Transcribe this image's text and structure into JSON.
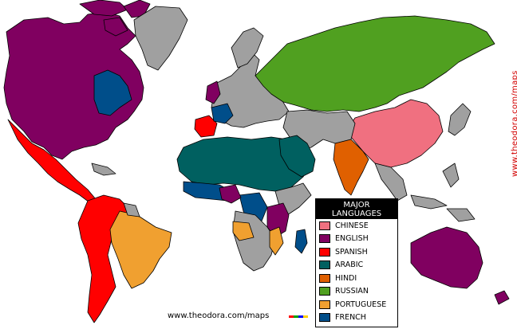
{
  "legend": {
    "title_line1": "MAJOR",
    "title_line2": "LANGUAGES",
    "items": [
      {
        "label": "CHINESE",
        "color": "#f07080"
      },
      {
        "label": "ENGLISH",
        "color": "#800060"
      },
      {
        "label": "SPANISH",
        "color": "#ff0000"
      },
      {
        "label": "ARABIC",
        "color": "#006060"
      },
      {
        "label": "HINDI",
        "color": "#e06000"
      },
      {
        "label": "RUSSIAN",
        "color": "#50a020"
      },
      {
        "label": "PORTUGUESE",
        "color": "#f0a030"
      },
      {
        "label": "FRENCH",
        "color": "#004e8a"
      }
    ]
  },
  "other_color": "#a0a0a0",
  "footer_url": "www.theodora.com/maps",
  "side_url": "www.theodora.com/maps"
}
